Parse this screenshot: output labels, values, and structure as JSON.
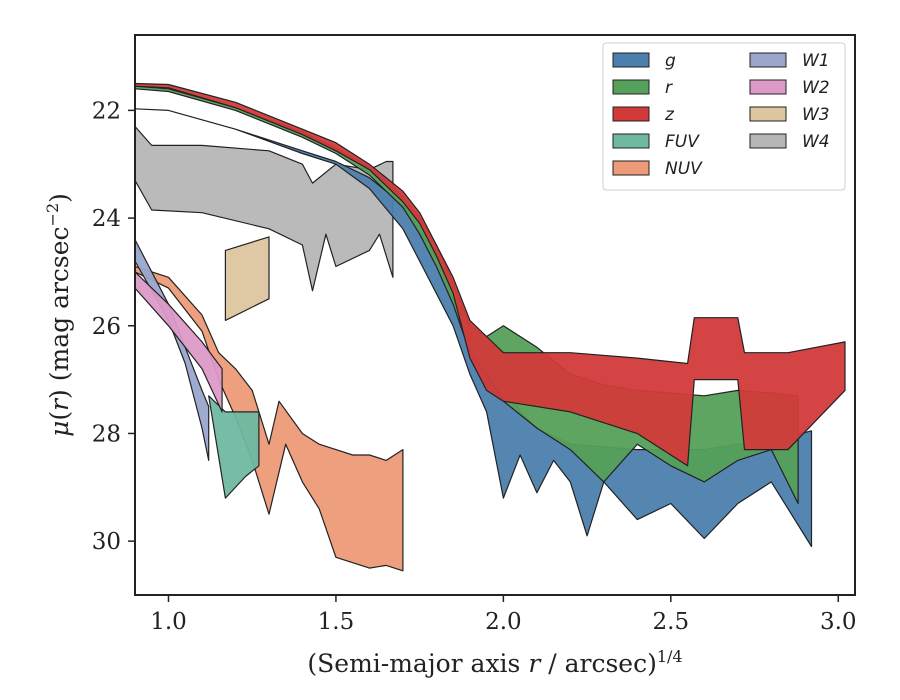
{
  "chart_data": {
    "type": "area",
    "title": "",
    "xlabel": "(Semi-major axis r / arcsec)",
    "xlabel_parts": {
      "prefix": "(Semi-major axis ",
      "var": "r",
      "suffix": " / arcsec)",
      "exponent": "1/4"
    },
    "ylabel": "μ(r) (mag arcsec−2)",
    "ylabel_parts": {
      "mu": "μ",
      "open": "(",
      "var": "r",
      "close": ") (mag arcsec",
      "exponent": "−2",
      "end": ")"
    },
    "xlim": [
      0.9,
      3.05
    ],
    "ylim": [
      31.0,
      20.6
    ],
    "y_inverted": true,
    "x_ticks": [
      1.0,
      1.5,
      2.0,
      2.5,
      3.0
    ],
    "x_tick_labels": [
      "1.0",
      "1.5",
      "2.0",
      "2.5",
      "3.0"
    ],
    "y_ticks": [
      22,
      24,
      26,
      28,
      30
    ],
    "y_tick_labels": [
      "22",
      "24",
      "26",
      "28",
      "30"
    ],
    "grid": false,
    "legend_position": "top-right",
    "legend_columns": 2,
    "series": [
      {
        "name": "g",
        "color": "#4c7fae",
        "upper": [
          [
            0.9,
            21.97
          ],
          [
            1.0,
            22.0
          ],
          [
            1.2,
            22.35
          ],
          [
            1.4,
            22.75
          ],
          [
            1.5,
            22.95
          ],
          [
            1.6,
            23.25
          ],
          [
            1.7,
            23.75
          ],
          [
            1.75,
            24.2
          ],
          [
            1.8,
            24.75
          ],
          [
            1.85,
            25.5
          ],
          [
            1.9,
            26.3
          ],
          [
            1.95,
            26.6
          ],
          [
            2.0,
            27.0
          ],
          [
            2.05,
            27.6
          ],
          [
            2.1,
            27.9
          ],
          [
            2.2,
            28.2
          ],
          [
            2.3,
            28.25
          ],
          [
            2.4,
            28.3
          ],
          [
            2.5,
            28.3
          ],
          [
            2.6,
            28.3
          ],
          [
            2.7,
            28.2
          ],
          [
            2.8,
            28.15
          ],
          [
            2.92,
            27.95
          ]
        ],
        "lower": [
          [
            0.9,
            21.97
          ],
          [
            1.0,
            22.0
          ],
          [
            1.2,
            22.35
          ],
          [
            1.4,
            22.8
          ],
          [
            1.5,
            23.0
          ],
          [
            1.6,
            23.45
          ],
          [
            1.7,
            24.2
          ],
          [
            1.75,
            24.8
          ],
          [
            1.8,
            25.4
          ],
          [
            1.85,
            26.0
          ],
          [
            1.9,
            26.9
          ],
          [
            1.95,
            27.6
          ],
          [
            2.0,
            29.2
          ],
          [
            2.05,
            28.4
          ],
          [
            2.1,
            29.1
          ],
          [
            2.15,
            28.5
          ],
          [
            2.2,
            28.9
          ],
          [
            2.25,
            29.9
          ],
          [
            2.3,
            28.9
          ],
          [
            2.4,
            29.6
          ],
          [
            2.5,
            29.3
          ],
          [
            2.6,
            29.95
          ],
          [
            2.7,
            29.3
          ],
          [
            2.8,
            28.9
          ],
          [
            2.92,
            30.1
          ]
        ]
      },
      {
        "name": "r",
        "color": "#55a05a",
        "upper": [
          [
            0.9,
            21.55
          ],
          [
            1.0,
            21.6
          ],
          [
            1.2,
            21.95
          ],
          [
            1.4,
            22.4
          ],
          [
            1.5,
            22.7
          ],
          [
            1.6,
            23.05
          ],
          [
            1.7,
            23.6
          ],
          [
            1.75,
            24.0
          ],
          [
            1.8,
            24.5
          ],
          [
            1.85,
            25.2
          ],
          [
            1.9,
            26.0
          ],
          [
            1.95,
            26.2
          ],
          [
            2.0,
            26.0
          ],
          [
            2.1,
            26.4
          ],
          [
            2.2,
            26.9
          ],
          [
            2.3,
            27.1
          ],
          [
            2.4,
            27.2
          ],
          [
            2.5,
            27.25
          ],
          [
            2.6,
            27.3
          ],
          [
            2.7,
            27.2
          ],
          [
            2.8,
            27.25
          ],
          [
            2.88,
            27.3
          ]
        ],
        "lower": [
          [
            0.9,
            21.6
          ],
          [
            1.0,
            21.65
          ],
          [
            1.2,
            22.0
          ],
          [
            1.4,
            22.5
          ],
          [
            1.5,
            22.8
          ],
          [
            1.6,
            23.2
          ],
          [
            1.7,
            23.8
          ],
          [
            1.75,
            24.3
          ],
          [
            1.8,
            24.9
          ],
          [
            1.85,
            25.6
          ],
          [
            1.9,
            26.5
          ],
          [
            1.95,
            26.9
          ],
          [
            2.0,
            27.4
          ],
          [
            2.1,
            27.9
          ],
          [
            2.2,
            28.3
          ],
          [
            2.3,
            28.9
          ],
          [
            2.4,
            28.2
          ],
          [
            2.5,
            28.6
          ],
          [
            2.6,
            28.9
          ],
          [
            2.7,
            28.5
          ],
          [
            2.8,
            28.3
          ],
          [
            2.88,
            29.3
          ]
        ]
      },
      {
        "name": "z",
        "color": "#d23a3a",
        "upper": [
          [
            0.9,
            21.5
          ],
          [
            1.0,
            21.52
          ],
          [
            1.2,
            21.85
          ],
          [
            1.4,
            22.35
          ],
          [
            1.5,
            22.6
          ],
          [
            1.6,
            23.0
          ],
          [
            1.7,
            23.5
          ],
          [
            1.75,
            23.9
          ],
          [
            1.8,
            24.5
          ],
          [
            1.85,
            25.1
          ],
          [
            1.9,
            25.9
          ],
          [
            1.95,
            26.2
          ],
          [
            2.0,
            26.5
          ],
          [
            2.2,
            26.5
          ],
          [
            2.4,
            26.6
          ],
          [
            2.55,
            26.7
          ],
          [
            2.57,
            25.85
          ],
          [
            2.7,
            25.85
          ],
          [
            2.72,
            26.5
          ],
          [
            2.85,
            26.5
          ],
          [
            3.02,
            26.3
          ]
        ],
        "lower": [
          [
            0.9,
            21.55
          ],
          [
            1.0,
            21.58
          ],
          [
            1.2,
            21.95
          ],
          [
            1.4,
            22.45
          ],
          [
            1.5,
            22.75
          ],
          [
            1.6,
            23.1
          ],
          [
            1.7,
            23.7
          ],
          [
            1.75,
            24.1
          ],
          [
            1.8,
            24.7
          ],
          [
            1.85,
            25.4
          ],
          [
            1.9,
            26.6
          ],
          [
            1.95,
            27.2
          ],
          [
            2.0,
            27.4
          ],
          [
            2.2,
            27.6
          ],
          [
            2.4,
            28.0
          ],
          [
            2.55,
            28.6
          ],
          [
            2.57,
            27.0
          ],
          [
            2.7,
            27.0
          ],
          [
            2.72,
            28.3
          ],
          [
            2.85,
            28.3
          ],
          [
            3.02,
            27.2
          ]
        ]
      },
      {
        "name": "FUV",
        "color": "#6fb8a1",
        "upper": [
          [
            1.12,
            27.3
          ],
          [
            1.17,
            27.6
          ],
          [
            1.23,
            27.6
          ],
          [
            1.27,
            27.6
          ]
        ],
        "lower": [
          [
            1.12,
            27.3
          ],
          [
            1.17,
            29.2
          ],
          [
            1.23,
            28.8
          ],
          [
            1.27,
            28.6
          ]
        ]
      },
      {
        "name": "NUV",
        "color": "#ec9a77",
        "upper": [
          [
            0.9,
            24.9
          ],
          [
            1.0,
            25.1
          ],
          [
            1.1,
            25.8
          ],
          [
            1.15,
            26.5
          ],
          [
            1.2,
            26.8
          ],
          [
            1.25,
            27.2
          ],
          [
            1.3,
            28.2
          ],
          [
            1.33,
            27.4
          ],
          [
            1.4,
            28.0
          ],
          [
            1.45,
            28.2
          ],
          [
            1.5,
            28.3
          ],
          [
            1.55,
            28.4
          ],
          [
            1.6,
            28.4
          ],
          [
            1.65,
            28.5
          ],
          [
            1.7,
            28.3
          ]
        ],
        "lower": [
          [
            0.9,
            25.0
          ],
          [
            1.0,
            25.3
          ],
          [
            1.1,
            26.1
          ],
          [
            1.15,
            27.0
          ],
          [
            1.2,
            27.7
          ],
          [
            1.25,
            28.5
          ],
          [
            1.3,
            29.5
          ],
          [
            1.35,
            28.2
          ],
          [
            1.4,
            28.9
          ],
          [
            1.45,
            29.4
          ],
          [
            1.5,
            30.3
          ],
          [
            1.55,
            30.4
          ],
          [
            1.6,
            30.5
          ],
          [
            1.65,
            30.45
          ],
          [
            1.7,
            30.55
          ]
        ]
      },
      {
        "name": "W1",
        "color": "#9aa7cb",
        "upper": [
          [
            0.9,
            24.4
          ],
          [
            1.0,
            25.6
          ],
          [
            1.05,
            26.4
          ],
          [
            1.1,
            27.2
          ],
          [
            1.12,
            27.5
          ]
        ],
        "lower": [
          [
            0.9,
            24.8
          ],
          [
            1.0,
            25.9
          ],
          [
            1.05,
            26.7
          ],
          [
            1.1,
            27.9
          ],
          [
            1.12,
            28.5
          ]
        ]
      },
      {
        "name": "W2",
        "color": "#dd9ac8",
        "upper": [
          [
            0.9,
            25.0
          ],
          [
            1.0,
            25.6
          ],
          [
            1.1,
            26.3
          ],
          [
            1.16,
            26.8
          ]
        ],
        "lower": [
          [
            0.9,
            25.3
          ],
          [
            1.0,
            26.0
          ],
          [
            1.1,
            26.8
          ],
          [
            1.16,
            27.6
          ]
        ]
      },
      {
        "name": "W3",
        "color": "#ddc59f",
        "upper": [
          [
            1.17,
            24.6
          ],
          [
            1.3,
            24.35
          ]
        ],
        "lower": [
          [
            1.17,
            25.9
          ],
          [
            1.3,
            25.5
          ]
        ]
      },
      {
        "name": "W4",
        "color": "#b6b6b6",
        "upper": [
          [
            0.9,
            22.3
          ],
          [
            0.95,
            22.65
          ],
          [
            1.1,
            22.65
          ],
          [
            1.3,
            22.75
          ],
          [
            1.4,
            23.0
          ],
          [
            1.43,
            23.35
          ],
          [
            1.5,
            23.0
          ],
          [
            1.6,
            23.1
          ],
          [
            1.65,
            22.95
          ],
          [
            1.67,
            22.95
          ]
        ],
        "lower": [
          [
            0.9,
            23.3
          ],
          [
            0.95,
            23.85
          ],
          [
            1.1,
            23.9
          ],
          [
            1.3,
            24.2
          ],
          [
            1.4,
            24.5
          ],
          [
            1.43,
            25.35
          ],
          [
            1.47,
            24.3
          ],
          [
            1.5,
            24.9
          ],
          [
            1.6,
            24.6
          ],
          [
            1.63,
            24.3
          ],
          [
            1.67,
            25.1
          ]
        ]
      }
    ]
  }
}
